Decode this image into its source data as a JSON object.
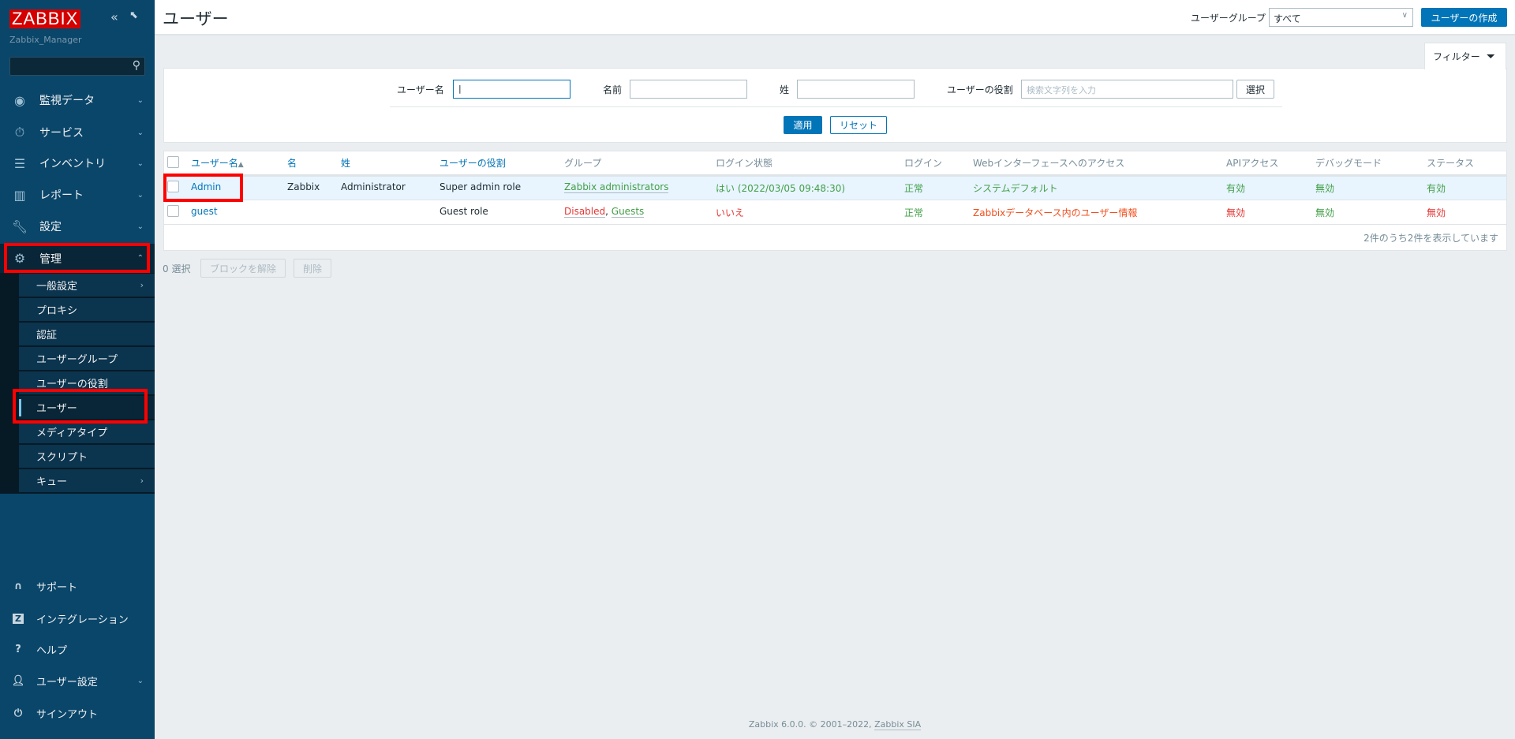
{
  "sidebar": {
    "logo": "ZABBIX",
    "server": "Zabbix_Manager",
    "collapse_icon": "double-chevron-left",
    "kiosk_icon": "expand",
    "search": {
      "value": "",
      "placeholder": ""
    },
    "menu": [
      {
        "label": "監視データ",
        "icon": "eye"
      },
      {
        "label": "サービス",
        "icon": "stopwatch"
      },
      {
        "label": "インベントリ",
        "icon": "list"
      },
      {
        "label": "レポート",
        "icon": "bar-chart"
      },
      {
        "label": "設定",
        "icon": "wrench"
      },
      {
        "label": "管理",
        "icon": "gear",
        "expanded": true
      }
    ],
    "submenu": [
      {
        "label": "一般設定",
        "arrow": true
      },
      {
        "label": "プロキシ"
      },
      {
        "label": "認証"
      },
      {
        "label": "ユーザーグループ"
      },
      {
        "label": "ユーザーの役割"
      },
      {
        "label": "ユーザー",
        "selected": true
      },
      {
        "label": "メディアタイプ"
      },
      {
        "label": "スクリプト"
      },
      {
        "label": "キュー",
        "arrow": true
      }
    ],
    "bottom": [
      {
        "label": "サポート",
        "icon": "headset"
      },
      {
        "label": "インテグレーション",
        "icon": "z"
      },
      {
        "label": "ヘルプ",
        "icon": "question"
      },
      {
        "label": "ユーザー設定",
        "icon": "user"
      },
      {
        "label": "サインアウト",
        "icon": "power"
      }
    ]
  },
  "header": {
    "title": "ユーザー",
    "group_label": "ユーザーグループ",
    "group_value": "すべて",
    "create_button": "ユーザーの作成"
  },
  "filter": {
    "tab_label": "フィルター",
    "username_label": "ユーザー名",
    "username_value": "",
    "name_label": "名前",
    "name_value": "",
    "surname_label": "姓",
    "surname_value": "",
    "role_label": "ユーザーの役割",
    "role_placeholder": "検索文字列を入力",
    "select_button": "選択",
    "apply_button": "適用",
    "reset_button": "リセット"
  },
  "table": {
    "headers": [
      "ユーザー名",
      "名",
      "姓",
      "ユーザーの役割",
      "グループ",
      "ログイン状態",
      "ログイン",
      "Webインターフェースへのアクセス",
      "APIアクセス",
      "デバッグモード",
      "ステータス"
    ],
    "sort_indicator": "▲",
    "rows": [
      {
        "username": "Admin",
        "name": "Zabbix",
        "surname": "Administrator",
        "role": "Super admin role",
        "groups": [
          {
            "label": "Zabbix administrators",
            "status": "enabled"
          }
        ],
        "login_status": "はい (2022/03/05 09:48:30)",
        "login": "正常",
        "gui_access": "システムデフォルト",
        "api": "有効",
        "debug": "無効",
        "status": "有効"
      },
      {
        "username": "guest",
        "name": "",
        "surname": "",
        "role": "Guest role",
        "groups": [
          {
            "label": "Disabled",
            "status": "disabled"
          },
          {
            "label": "Guests",
            "status": "enabled"
          }
        ],
        "login_status": "いいえ",
        "login": "正常",
        "gui_access": "Zabbixデータベース内のユーザー情報",
        "api": "無効",
        "debug": "無効",
        "status": "無効"
      }
    ],
    "summary": "2件のうち2件を表示しています"
  },
  "actions": {
    "selected": "0 選択",
    "unblock": "ブロックを解除",
    "delete": "削除"
  },
  "footer": {
    "text": "Zabbix 6.0.0. © 2001–2022, ",
    "link": "Zabbix SIA"
  },
  "colors": {
    "sidebar": "#0a466a",
    "accent": "#0275b8",
    "green": "#429e47",
    "red": "#e33734",
    "highlight": "#ff0000"
  }
}
